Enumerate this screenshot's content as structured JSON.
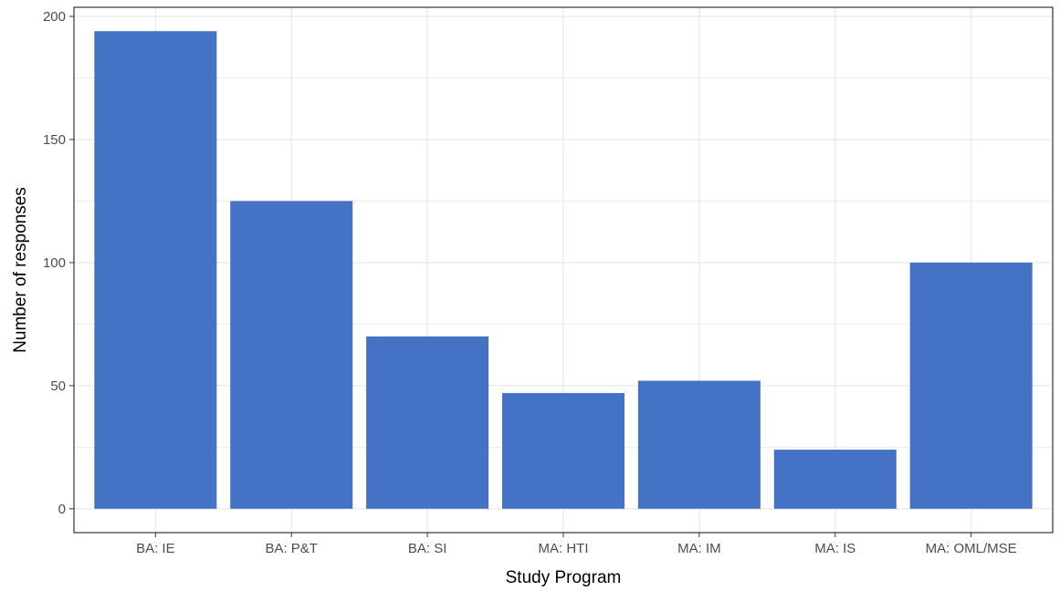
{
  "chart_data": {
    "type": "bar",
    "title": "",
    "xlabel": "Study Program",
    "ylabel": "Number of responses",
    "categories": [
      "BA: IE",
      "BA: P&T",
      "BA: SI",
      "MA: HTI",
      "MA: IM",
      "MA: IS",
      "MA: OML/MSE"
    ],
    "values": [
      194,
      125,
      70,
      47,
      52,
      24,
      100
    ],
    "ylim": [
      -9.7,
      203.7
    ],
    "yticks": [
      0,
      50,
      100,
      150,
      200
    ],
    "ytick_labels": [
      "0",
      "50",
      "100",
      "150",
      "200"
    ],
    "grid": true,
    "legend": "none",
    "colors": {
      "bar": "#4472c4",
      "grid": "#ebebeb",
      "panel_border": "#333333",
      "tick_text": "#4d4d4d",
      "axis_title": "#000000"
    }
  }
}
